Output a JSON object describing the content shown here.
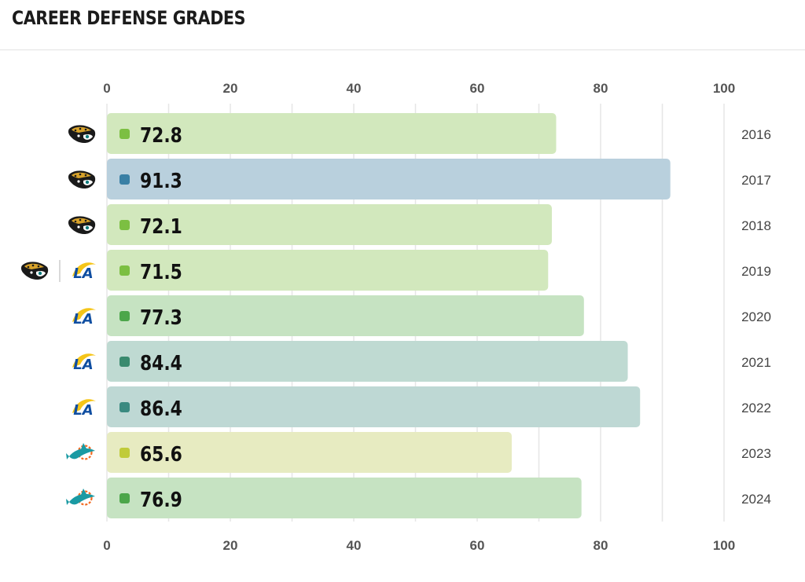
{
  "header": {
    "title": "CAREER DEFENSE GRADES"
  },
  "chart_data": {
    "type": "bar",
    "orientation": "horizontal",
    "title": "CAREER DEFENSE GRADES",
    "xlim": [
      0,
      100
    ],
    "xticks": [
      0,
      20,
      40,
      60,
      80,
      100
    ],
    "grid": true,
    "axis_labels_position": "top-and-bottom",
    "categories": [
      "2016",
      "2017",
      "2018",
      "2019",
      "2020",
      "2021",
      "2022",
      "2023",
      "2024"
    ],
    "values": [
      72.8,
      91.3,
      72.1,
      71.5,
      77.3,
      84.4,
      86.4,
      65.6,
      76.9
    ],
    "teams": [
      [
        "jaguars-logo-icon"
      ],
      [
        "jaguars-logo-icon"
      ],
      [
        "jaguars-logo-icon"
      ],
      [
        "jaguars-logo-icon",
        "rams-logo-icon"
      ],
      [
        "rams-logo-icon"
      ],
      [
        "rams-logo-icon"
      ],
      [
        "rams-logo-icon"
      ],
      [
        "dolphins-logo-icon"
      ],
      [
        "dolphins-logo-icon"
      ]
    ],
    "bar_colors": [
      "#d2e8bd",
      "#b9d0dd",
      "#d2e8bd",
      "#d2e8bd",
      "#c6e3c2",
      "#bfdad2",
      "#bed8d4",
      "#e7ebc1",
      "#c6e3c2"
    ],
    "dot_colors": [
      "#7cbf42",
      "#3a80a5",
      "#7cbf42",
      "#7cbf42",
      "#4ca64a",
      "#3a8a6e",
      "#3a8a80",
      "#c0cb3a",
      "#4ca64a"
    ]
  }
}
